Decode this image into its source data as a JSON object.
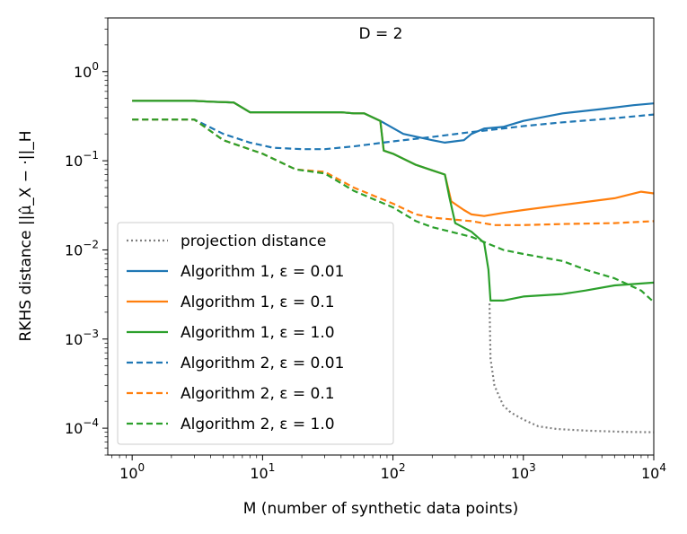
{
  "chart_data": {
    "type": "line",
    "title": "D = 2",
    "xlabel": "M (number of synthetic data points)",
    "ylabel": "RKHS distance ||μ̂_X − ·||_H",
    "xscale": "log",
    "yscale": "log",
    "xlim": [
      0.65,
      10000
    ],
    "ylim": [
      5e-05,
      4
    ],
    "x_ticks": [
      {
        "value": 1,
        "base": "10",
        "exp": "0"
      },
      {
        "value": 10,
        "base": "10",
        "exp": "1"
      },
      {
        "value": 100,
        "base": "10",
        "exp": "2"
      },
      {
        "value": 1000,
        "base": "10",
        "exp": "3"
      },
      {
        "value": 10000,
        "base": "10",
        "exp": "4"
      }
    ],
    "y_ticks": [
      {
        "value": 1,
        "base": "10",
        "exp": "0"
      },
      {
        "value": 0.1,
        "base": "10",
        "exp": "−1"
      },
      {
        "value": 0.01,
        "base": "10",
        "exp": "−2"
      },
      {
        "value": 0.001,
        "base": "10",
        "exp": "−3"
      },
      {
        "value": 0.0001,
        "base": "10",
        "exp": "−4"
      }
    ],
    "legend_position": "lower-left",
    "series": [
      {
        "name": "projection distance",
        "label_main": "projection distance",
        "label_eps": "",
        "color": "#7f7f7f",
        "style": "dotted",
        "points": [
          [
            550,
            0.0025
          ],
          [
            560,
            0.0006
          ],
          [
            600,
            0.0003
          ],
          [
            700,
            0.00018
          ],
          [
            800,
            0.00015
          ],
          [
            1000,
            0.000125
          ],
          [
            1300,
            0.000105
          ],
          [
            1800,
            9.8e-05
          ],
          [
            3000,
            9.4e-05
          ],
          [
            6000,
            9.1e-05
          ],
          [
            10000,
            9e-05
          ]
        ]
      },
      {
        "name": "Algorithm 1, ε = 0.01",
        "label_main": "Algorithm 1, ",
        "label_eps": "ε = 0.01",
        "color": "#1f77b4",
        "style": "solid",
        "points": [
          [
            1,
            0.47
          ],
          [
            3,
            0.47
          ],
          [
            4,
            0.46
          ],
          [
            6,
            0.45
          ],
          [
            8,
            0.35
          ],
          [
            15,
            0.35
          ],
          [
            40,
            0.35
          ],
          [
            50,
            0.34
          ],
          [
            60,
            0.34
          ],
          [
            80,
            0.28
          ],
          [
            120,
            0.2
          ],
          [
            200,
            0.17
          ],
          [
            250,
            0.16
          ],
          [
            350,
            0.17
          ],
          [
            400,
            0.2
          ],
          [
            500,
            0.23
          ],
          [
            700,
            0.24
          ],
          [
            1000,
            0.28
          ],
          [
            2000,
            0.34
          ],
          [
            4000,
            0.38
          ],
          [
            7000,
            0.42
          ],
          [
            10000,
            0.44
          ]
        ]
      },
      {
        "name": "Algorithm 1, ε = 0.1",
        "label_main": "Algorithm 1, ",
        "label_eps": "ε = 0.1",
        "color": "#ff7f0e",
        "style": "solid",
        "points": [
          [
            1,
            0.47
          ],
          [
            3,
            0.47
          ],
          [
            4,
            0.46
          ],
          [
            6,
            0.45
          ],
          [
            8,
            0.35
          ],
          [
            15,
            0.35
          ],
          [
            40,
            0.35
          ],
          [
            50,
            0.34
          ],
          [
            60,
            0.34
          ],
          [
            80,
            0.28
          ],
          [
            85,
            0.13
          ],
          [
            100,
            0.12
          ],
          [
            150,
            0.09
          ],
          [
            200,
            0.078
          ],
          [
            250,
            0.07
          ],
          [
            280,
            0.035
          ],
          [
            350,
            0.028
          ],
          [
            400,
            0.025
          ],
          [
            500,
            0.024
          ],
          [
            700,
            0.026
          ],
          [
            1000,
            0.028
          ],
          [
            2000,
            0.032
          ],
          [
            5000,
            0.038
          ],
          [
            8000,
            0.045
          ],
          [
            10000,
            0.043
          ]
        ]
      },
      {
        "name": "Algorithm 1, ε = 1.0",
        "label_main": "Algorithm 1, ",
        "label_eps": "ε = 1.0",
        "color": "#2ca02c",
        "style": "solid",
        "points": [
          [
            1,
            0.47
          ],
          [
            3,
            0.47
          ],
          [
            4,
            0.46
          ],
          [
            6,
            0.45
          ],
          [
            8,
            0.35
          ],
          [
            15,
            0.35
          ],
          [
            40,
            0.35
          ],
          [
            50,
            0.34
          ],
          [
            60,
            0.34
          ],
          [
            80,
            0.28
          ],
          [
            85,
            0.13
          ],
          [
            100,
            0.12
          ],
          [
            150,
            0.09
          ],
          [
            200,
            0.078
          ],
          [
            250,
            0.07
          ],
          [
            270,
            0.04
          ],
          [
            300,
            0.02
          ],
          [
            400,
            0.016
          ],
          [
            500,
            0.012
          ],
          [
            540,
            0.006
          ],
          [
            560,
            0.0027
          ],
          [
            700,
            0.0027
          ],
          [
            1000,
            0.003
          ],
          [
            2000,
            0.0032
          ],
          [
            3000,
            0.0035
          ],
          [
            5000,
            0.004
          ],
          [
            10000,
            0.0043
          ]
        ]
      },
      {
        "name": "Algorithm 2, ε = 0.01",
        "label_main": "Algorithm 2, ",
        "label_eps": "ε = 0.01",
        "color": "#1f77b4",
        "style": "dashed",
        "points": [
          [
            1,
            0.29
          ],
          [
            3,
            0.29
          ],
          [
            5,
            0.2
          ],
          [
            8,
            0.16
          ],
          [
            12,
            0.14
          ],
          [
            20,
            0.135
          ],
          [
            30,
            0.135
          ],
          [
            50,
            0.145
          ],
          [
            100,
            0.165
          ],
          [
            200,
            0.185
          ],
          [
            400,
            0.21
          ],
          [
            700,
            0.23
          ],
          [
            1000,
            0.245
          ],
          [
            2000,
            0.27
          ],
          [
            5000,
            0.3
          ],
          [
            10000,
            0.33
          ]
        ]
      },
      {
        "name": "Algorithm 2, ε = 0.1",
        "label_main": "Algorithm 2, ",
        "label_eps": "ε = 0.1",
        "color": "#ff7f0e",
        "style": "dashed",
        "points": [
          [
            1,
            0.29
          ],
          [
            3,
            0.29
          ],
          [
            5,
            0.17
          ],
          [
            10,
            0.12
          ],
          [
            18,
            0.08
          ],
          [
            30,
            0.075
          ],
          [
            50,
            0.05
          ],
          [
            100,
            0.033
          ],
          [
            150,
            0.025
          ],
          [
            200,
            0.023
          ],
          [
            400,
            0.021
          ],
          [
            600,
            0.019
          ],
          [
            1000,
            0.019
          ],
          [
            2000,
            0.0195
          ],
          [
            5000,
            0.02
          ],
          [
            10000,
            0.021
          ]
        ]
      },
      {
        "name": "Algorithm 2, ε = 1.0",
        "label_main": "Algorithm 2, ",
        "label_eps": "ε = 1.0",
        "color": "#2ca02c",
        "style": "dashed",
        "points": [
          [
            1,
            0.29
          ],
          [
            3,
            0.29
          ],
          [
            5,
            0.17
          ],
          [
            10,
            0.12
          ],
          [
            18,
            0.08
          ],
          [
            30,
            0.072
          ],
          [
            50,
            0.046
          ],
          [
            100,
            0.03
          ],
          [
            150,
            0.021
          ],
          [
            200,
            0.018
          ],
          [
            400,
            0.014
          ],
          [
            700,
            0.01
          ],
          [
            1000,
            0.009
          ],
          [
            2000,
            0.0075
          ],
          [
            3000,
            0.006
          ],
          [
            5000,
            0.0048
          ],
          [
            8000,
            0.0035
          ],
          [
            10000,
            0.0026
          ]
        ]
      }
    ]
  }
}
